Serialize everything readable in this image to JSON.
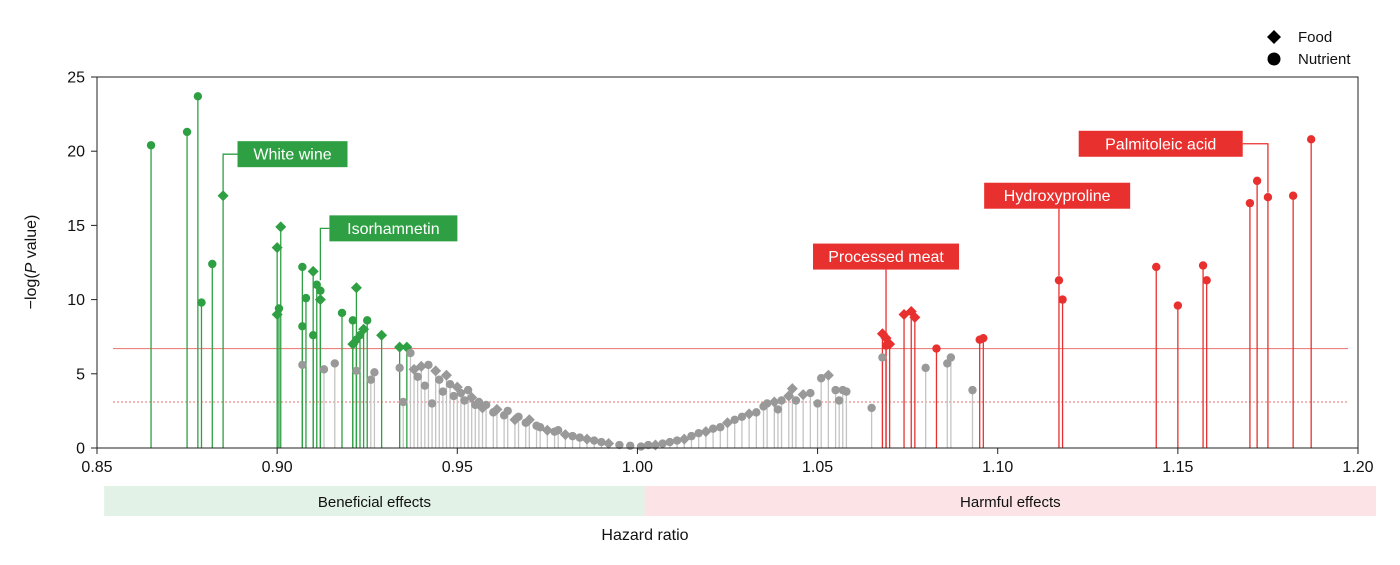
{
  "chart_data": {
    "type": "scatter",
    "title": "",
    "xlabel": "Hazard ratio",
    "ylabel_prefix": "−log(",
    "ylabel_italic": "P",
    "ylabel_suffix": " value)",
    "xlim": [
      0.85,
      1.2
    ],
    "ylim": [
      0,
      25
    ],
    "xticks": [
      "0.85",
      "0.90",
      "0.95",
      "1.00",
      "1.05",
      "1.10",
      "1.15",
      "1.20"
    ],
    "yticks": [
      "0",
      "5",
      "10",
      "15",
      "20",
      "25"
    ],
    "grid": false,
    "legend_position": "top-right",
    "legend": [
      {
        "label": "Food",
        "marker": "diamond"
      },
      {
        "label": "Nutrient",
        "marker": "circle"
      }
    ],
    "thresholds": [
      {
        "y": 6.7,
        "style": "solid",
        "color": "#e8736f"
      },
      {
        "y": 3.1,
        "style": "dotted",
        "color": "#e8736f"
      }
    ],
    "effect_bands": [
      {
        "label": "Beneficial effects",
        "from": 0.852,
        "to": 1.002,
        "color": "#e3f2e6"
      },
      {
        "label": "Harmful effects",
        "from": 1.002,
        "to": 1.205,
        "color": "#fbe3e6"
      }
    ],
    "colors": {
      "beneficial": "#2ea043",
      "harmful": "#e8302f",
      "neutral": "#999999",
      "neutral_stem": "#c4c4c4"
    },
    "series": [
      {
        "group": "beneficial",
        "points": [
          {
            "x": 0.865,
            "y": 20.4,
            "m": "c"
          },
          {
            "x": 0.875,
            "y": 21.3,
            "m": "c"
          },
          {
            "x": 0.878,
            "y": 23.7,
            "m": "c"
          },
          {
            "x": 0.879,
            "y": 9.8,
            "m": "c"
          },
          {
            "x": 0.882,
            "y": 12.4,
            "m": "c"
          },
          {
            "x": 0.885,
            "y": 17.0,
            "m": "d"
          },
          {
            "x": 0.9,
            "y": 13.5,
            "m": "d"
          },
          {
            "x": 0.9,
            "y": 9.0,
            "m": "d"
          },
          {
            "x": 0.9005,
            "y": 9.4,
            "m": "c"
          },
          {
            "x": 0.901,
            "y": 14.9,
            "m": "d"
          },
          {
            "x": 0.907,
            "y": 12.2,
            "m": "c"
          },
          {
            "x": 0.907,
            "y": 8.2,
            "m": "c"
          },
          {
            "x": 0.908,
            "y": 10.1,
            "m": "c"
          },
          {
            "x": 0.91,
            "y": 7.6,
            "m": "c"
          },
          {
            "x": 0.91,
            "y": 11.9,
            "m": "d"
          },
          {
            "x": 0.911,
            "y": 11.0,
            "m": "c"
          },
          {
            "x": 0.912,
            "y": 10.6,
            "m": "c"
          },
          {
            "x": 0.912,
            "y": 10.0,
            "m": "d"
          },
          {
            "x": 0.918,
            "y": 9.1,
            "m": "c"
          },
          {
            "x": 0.921,
            "y": 8.6,
            "m": "c"
          },
          {
            "x": 0.921,
            "y": 7.0,
            "m": "d"
          },
          {
            "x": 0.922,
            "y": 7.3,
            "m": "c"
          },
          {
            "x": 0.922,
            "y": 10.8,
            "m": "d"
          },
          {
            "x": 0.923,
            "y": 7.6,
            "m": "c"
          },
          {
            "x": 0.924,
            "y": 8.0,
            "m": "d"
          },
          {
            "x": 0.925,
            "y": 8.6,
            "m": "c"
          },
          {
            "x": 0.929,
            "y": 7.6,
            "m": "d"
          },
          {
            "x": 0.934,
            "y": 6.8,
            "m": "d"
          },
          {
            "x": 0.936,
            "y": 6.8,
            "m": "d"
          }
        ]
      },
      {
        "group": "harmful",
        "points": [
          {
            "x": 1.068,
            "y": 7.7,
            "m": "d"
          },
          {
            "x": 1.069,
            "y": 7.4,
            "m": "d"
          },
          {
            "x": 1.069,
            "y": 6.9,
            "m": "c"
          },
          {
            "x": 1.07,
            "y": 7.0,
            "m": "d"
          },
          {
            "x": 1.074,
            "y": 9.0,
            "m": "d"
          },
          {
            "x": 1.076,
            "y": 9.2,
            "m": "d"
          },
          {
            "x": 1.077,
            "y": 8.8,
            "m": "d"
          },
          {
            "x": 1.083,
            "y": 6.7,
            "m": "c"
          },
          {
            "x": 1.095,
            "y": 7.3,
            "m": "c"
          },
          {
            "x": 1.096,
            "y": 7.4,
            "m": "c"
          },
          {
            "x": 1.117,
            "y": 11.3,
            "m": "c"
          },
          {
            "x": 1.118,
            "y": 10.0,
            "m": "c"
          },
          {
            "x": 1.144,
            "y": 12.2,
            "m": "c"
          },
          {
            "x": 1.15,
            "y": 9.6,
            "m": "c"
          },
          {
            "x": 1.157,
            "y": 12.3,
            "m": "c"
          },
          {
            "x": 1.158,
            "y": 11.3,
            "m": "c"
          },
          {
            "x": 1.17,
            "y": 16.5,
            "m": "c"
          },
          {
            "x": 1.172,
            "y": 18.0,
            "m": "c"
          },
          {
            "x": 1.175,
            "y": 16.9,
            "m": "c"
          },
          {
            "x": 1.182,
            "y": 17.0,
            "m": "c"
          },
          {
            "x": 1.187,
            "y": 20.8,
            "m": "c"
          }
        ]
      },
      {
        "group": "neutral",
        "points": [
          {
            "x": 0.907,
            "y": 5.6,
            "m": "c"
          },
          {
            "x": 0.913,
            "y": 5.3,
            "m": "c"
          },
          {
            "x": 0.916,
            "y": 5.7,
            "m": "c"
          },
          {
            "x": 0.922,
            "y": 5.2,
            "m": "c"
          },
          {
            "x": 0.926,
            "y": 4.6,
            "m": "c"
          },
          {
            "x": 0.927,
            "y": 5.1,
            "m": "c"
          },
          {
            "x": 0.934,
            "y": 5.4,
            "m": "c"
          },
          {
            "x": 0.935,
            "y": 3.1,
            "m": "c"
          },
          {
            "x": 0.937,
            "y": 6.4,
            "m": "c"
          },
          {
            "x": 0.938,
            "y": 5.3,
            "m": "d"
          },
          {
            "x": 0.939,
            "y": 4.8,
            "m": "c"
          },
          {
            "x": 0.94,
            "y": 5.5,
            "m": "d"
          },
          {
            "x": 0.941,
            "y": 4.2,
            "m": "c"
          },
          {
            "x": 0.942,
            "y": 5.6,
            "m": "c"
          },
          {
            "x": 0.943,
            "y": 3.0,
            "m": "c"
          },
          {
            "x": 0.944,
            "y": 5.2,
            "m": "d"
          },
          {
            "x": 0.945,
            "y": 4.6,
            "m": "c"
          },
          {
            "x": 0.946,
            "y": 3.8,
            "m": "c"
          },
          {
            "x": 0.947,
            "y": 4.9,
            "m": "d"
          },
          {
            "x": 0.948,
            "y": 4.3,
            "m": "c"
          },
          {
            "x": 0.949,
            "y": 3.5,
            "m": "c"
          },
          {
            "x": 0.95,
            "y": 4.1,
            "m": "d"
          },
          {
            "x": 0.951,
            "y": 3.7,
            "m": "c"
          },
          {
            "x": 0.952,
            "y": 3.2,
            "m": "c"
          },
          {
            "x": 0.953,
            "y": 3.9,
            "m": "c"
          },
          {
            "x": 0.954,
            "y": 3.4,
            "m": "d"
          },
          {
            "x": 0.955,
            "y": 2.9,
            "m": "c"
          },
          {
            "x": 0.956,
            "y": 3.1,
            "m": "c"
          },
          {
            "x": 0.957,
            "y": 2.7,
            "m": "d"
          },
          {
            "x": 0.958,
            "y": 2.9,
            "m": "c"
          },
          {
            "x": 0.96,
            "y": 2.4,
            "m": "c"
          },
          {
            "x": 0.961,
            "y": 2.6,
            "m": "d"
          },
          {
            "x": 0.963,
            "y": 2.2,
            "m": "c"
          },
          {
            "x": 0.964,
            "y": 2.5,
            "m": "c"
          },
          {
            "x": 0.966,
            "y": 1.9,
            "m": "d"
          },
          {
            "x": 0.967,
            "y": 2.1,
            "m": "c"
          },
          {
            "x": 0.969,
            "y": 1.7,
            "m": "c"
          },
          {
            "x": 0.97,
            "y": 1.9,
            "m": "d"
          },
          {
            "x": 0.972,
            "y": 1.5,
            "m": "c"
          },
          {
            "x": 0.973,
            "y": 1.4,
            "m": "c"
          },
          {
            "x": 0.975,
            "y": 1.2,
            "m": "d"
          },
          {
            "x": 0.977,
            "y": 1.1,
            "m": "c"
          },
          {
            "x": 0.978,
            "y": 1.2,
            "m": "c"
          },
          {
            "x": 0.98,
            "y": 0.9,
            "m": "d"
          },
          {
            "x": 0.982,
            "y": 0.8,
            "m": "c"
          },
          {
            "x": 0.984,
            "y": 0.7,
            "m": "c"
          },
          {
            "x": 0.986,
            "y": 0.6,
            "m": "d"
          },
          {
            "x": 0.988,
            "y": 0.5,
            "m": "c"
          },
          {
            "x": 0.99,
            "y": 0.4,
            "m": "c"
          },
          {
            "x": 0.992,
            "y": 0.3,
            "m": "d"
          },
          {
            "x": 0.995,
            "y": 0.2,
            "m": "c"
          },
          {
            "x": 0.998,
            "y": 0.15,
            "m": "c"
          },
          {
            "x": 1.001,
            "y": 0.1,
            "m": "c"
          },
          {
            "x": 1.003,
            "y": 0.2,
            "m": "c"
          },
          {
            "x": 1.005,
            "y": 0.2,
            "m": "d"
          },
          {
            "x": 1.007,
            "y": 0.3,
            "m": "c"
          },
          {
            "x": 1.009,
            "y": 0.4,
            "m": "c"
          },
          {
            "x": 1.011,
            "y": 0.5,
            "m": "c"
          },
          {
            "x": 1.013,
            "y": 0.6,
            "m": "d"
          },
          {
            "x": 1.015,
            "y": 0.8,
            "m": "c"
          },
          {
            "x": 1.017,
            "y": 1.0,
            "m": "c"
          },
          {
            "x": 1.019,
            "y": 1.1,
            "m": "d"
          },
          {
            "x": 1.021,
            "y": 1.3,
            "m": "c"
          },
          {
            "x": 1.023,
            "y": 1.4,
            "m": "c"
          },
          {
            "x": 1.025,
            "y": 1.7,
            "m": "d"
          },
          {
            "x": 1.027,
            "y": 1.9,
            "m": "c"
          },
          {
            "x": 1.029,
            "y": 2.1,
            "m": "c"
          },
          {
            "x": 1.031,
            "y": 2.3,
            "m": "d"
          },
          {
            "x": 1.033,
            "y": 2.4,
            "m": "c"
          },
          {
            "x": 1.035,
            "y": 2.8,
            "m": "c"
          },
          {
            "x": 1.036,
            "y": 3.0,
            "m": "c"
          },
          {
            "x": 1.038,
            "y": 3.1,
            "m": "d"
          },
          {
            "x": 1.039,
            "y": 2.6,
            "m": "c"
          },
          {
            "x": 1.04,
            "y": 3.2,
            "m": "c"
          },
          {
            "x": 1.042,
            "y": 3.5,
            "m": "d"
          },
          {
            "x": 1.043,
            "y": 4.0,
            "m": "d"
          },
          {
            "x": 1.044,
            "y": 3.2,
            "m": "c"
          },
          {
            "x": 1.046,
            "y": 3.6,
            "m": "d"
          },
          {
            "x": 1.048,
            "y": 3.7,
            "m": "c"
          },
          {
            "x": 1.05,
            "y": 3.0,
            "m": "c"
          },
          {
            "x": 1.051,
            "y": 4.7,
            "m": "c"
          },
          {
            "x": 1.053,
            "y": 4.9,
            "m": "d"
          },
          {
            "x": 1.055,
            "y": 3.9,
            "m": "c"
          },
          {
            "x": 1.056,
            "y": 3.2,
            "m": "c"
          },
          {
            "x": 1.057,
            "y": 3.9,
            "m": "c"
          },
          {
            "x": 1.058,
            "y": 3.8,
            "m": "c"
          },
          {
            "x": 1.065,
            "y": 2.7,
            "m": "c"
          },
          {
            "x": 1.068,
            "y": 6.1,
            "m": "c"
          },
          {
            "x": 1.08,
            "y": 5.4,
            "m": "c"
          },
          {
            "x": 1.086,
            "y": 5.7,
            "m": "c"
          },
          {
            "x": 1.087,
            "y": 6.1,
            "m": "c"
          },
          {
            "x": 1.093,
            "y": 3.9,
            "m": "c"
          }
        ]
      }
    ],
    "annotations": [
      {
        "text": "White wine",
        "group": "beneficial",
        "x": 0.885,
        "y": 17.0,
        "lx": 0.889,
        "ly": 19.8,
        "align": "left"
      },
      {
        "text": "Isorhamnetin",
        "group": "beneficial",
        "x": 0.912,
        "y": 11.3,
        "lx": 0.9145,
        "ly": 14.8,
        "align": "left"
      },
      {
        "text": "Processed meat",
        "group": "harmful",
        "x": 1.069,
        "y": 7.1,
        "lx": 1.069,
        "ly": 12.9,
        "align": "center"
      },
      {
        "text": "Hydroxyproline",
        "group": "harmful",
        "x": 1.117,
        "y": 11.6,
        "lx": 1.1165,
        "ly": 17.0,
        "align": "center"
      },
      {
        "text": "Palmitoleic acid",
        "group": "harmful",
        "x": 1.175,
        "y": 17.2,
        "lx": 1.168,
        "ly": 20.5,
        "align": "right"
      }
    ]
  }
}
